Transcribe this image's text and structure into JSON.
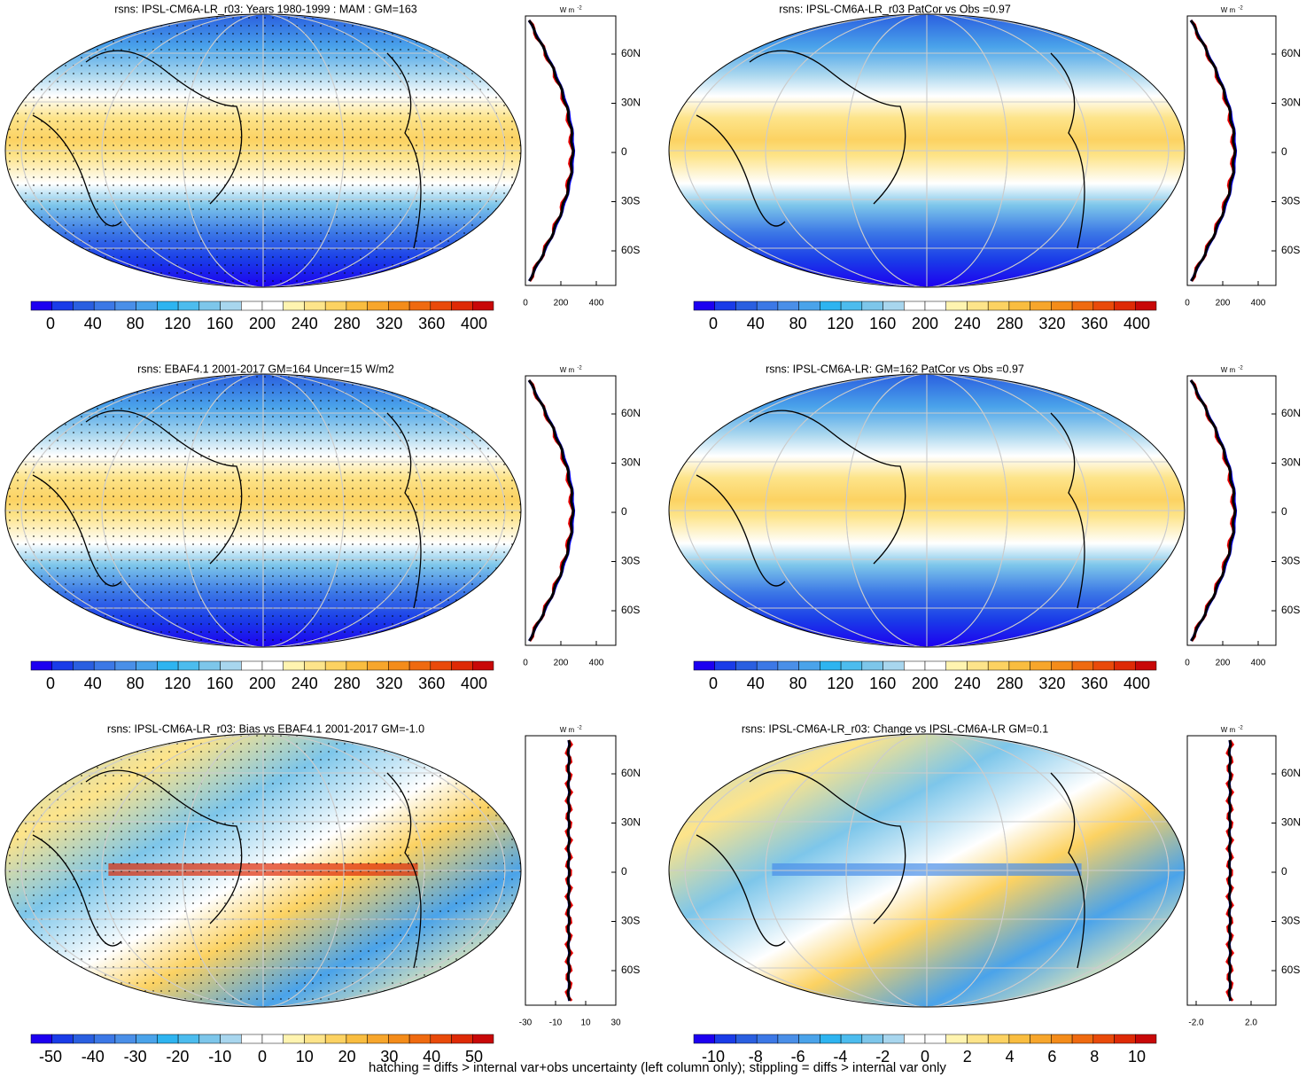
{
  "colorbar_colors": [
    "#1d00f0",
    "#1a3ce8",
    "#2a5fe0",
    "#3c78e6",
    "#4a8fe8",
    "#4aa3ea",
    "#2eb4f0",
    "#4cbcee",
    "#7dc6ea",
    "#a8d6ee",
    "#ffffff",
    "#ffffff",
    "#fff4b0",
    "#fde48a",
    "#fcd262",
    "#f9bd40",
    "#f7a62c",
    "#f48c1a",
    "#ef6a10",
    "#e94a0a",
    "#de2a06",
    "#c80808"
  ],
  "panels": [
    {
      "title": "rsns: IPSL-CM6A-LR_r03: Years 1980-1999 : MAM : GM=163",
      "style": "mean",
      "colorbar_labels": [
        "0",
        "40",
        "80",
        "120",
        "160",
        "200",
        "240",
        "280",
        "320",
        "360",
        "400"
      ],
      "lat_labels": [
        "60N",
        "30N",
        "0",
        "30S",
        "60S"
      ],
      "x_labels": [
        "0",
        "200",
        "400"
      ],
      "unit": "W m",
      "unit_exp": "-2"
    },
    {
      "title": "rsns: IPSL-CM6A-LR_r03 PatCor vs Obs =0.97",
      "style": "mean",
      "colorbar_labels": [
        "0",
        "40",
        "80",
        "120",
        "160",
        "200",
        "240",
        "280",
        "320",
        "360",
        "400"
      ],
      "lat_labels": [
        "60N",
        "30N",
        "0",
        "30S",
        "60S"
      ],
      "x_labels": [
        "0",
        "200",
        "400"
      ],
      "unit": "W m",
      "unit_exp": "-2"
    },
    {
      "title": "rsns: EBAF4.1 2001-2017 GM=164 Uncer=15 W/m2",
      "style": "mean",
      "colorbar_labels": [
        "0",
        "40",
        "80",
        "120",
        "160",
        "200",
        "240",
        "280",
        "320",
        "360",
        "400"
      ],
      "lat_labels": [
        "60N",
        "30N",
        "0",
        "30S",
        "60S"
      ],
      "x_labels": [
        "0",
        "200",
        "400"
      ],
      "unit": "W m",
      "unit_exp": "-2"
    },
    {
      "title": "rsns: IPSL-CM6A-LR: GM=162 PatCor vs Obs =0.97",
      "style": "mean",
      "colorbar_labels": [
        "0",
        "40",
        "80",
        "120",
        "160",
        "200",
        "240",
        "280",
        "320",
        "360",
        "400"
      ],
      "lat_labels": [
        "60N",
        "30N",
        "0",
        "30S",
        "60S"
      ],
      "x_labels": [
        "0",
        "200",
        "400"
      ],
      "unit": "W m",
      "unit_exp": "-2"
    },
    {
      "title": "rsns: IPSL-CM6A-LR_r03: Bias vs EBAF4.1 2001-2017 GM=-1.0",
      "style": "diff",
      "colorbar_labels": [
        "-50",
        "-40",
        "-30",
        "-20",
        "-10",
        "0",
        "10",
        "20",
        "30",
        "40",
        "50"
      ],
      "lat_labels": [
        "60N",
        "30N",
        "0",
        "30S",
        "60S"
      ],
      "x_labels": [
        "-30",
        "-10",
        "10",
        "30"
      ],
      "unit": "W m",
      "unit_exp": "-2"
    },
    {
      "title": "rsns: IPSL-CM6A-LR_r03: Change vs IPSL-CM6A-LR GM=0.1",
      "style": "diff",
      "colorbar_labels": [
        "-10",
        "-8",
        "-6",
        "-4",
        "-2",
        "0",
        "2",
        "4",
        "6",
        "8",
        "10"
      ],
      "lat_labels": [
        "60N",
        "30N",
        "0",
        "30S",
        "60S"
      ],
      "x_labels": [
        "-2.0",
        "2.0"
      ],
      "unit": "W m",
      "unit_exp": "-2"
    }
  ],
  "footer": "hatching = diffs > internal var+obs uncertainty (left column only); stippling = diffs > internal var only"
}
